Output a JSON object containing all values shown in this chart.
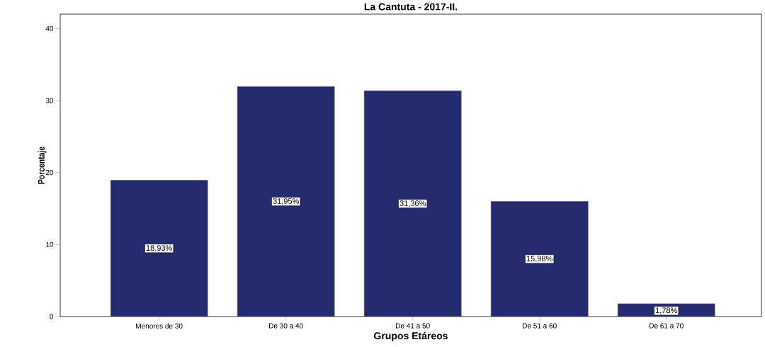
{
  "chart_data": {
    "type": "bar",
    "title": "La Cantuta - 2017-II.",
    "xlabel": "Grupos Etáreos",
    "ylabel": "Porcentaje",
    "categories": [
      "Menores de 30",
      "De 30 a 40",
      "De 41 a 50",
      "De 51 a 60",
      "De 61 a 70"
    ],
    "values": [
      18.93,
      31.95,
      31.36,
      15.98,
      1.78
    ],
    "value_labels": [
      "18,93%",
      "31,95%",
      "31,36%",
      "15,98%",
      "1,78%"
    ],
    "color": "#262a6e",
    "ylim": [
      0,
      42
    ],
    "yticks": [
      0,
      10,
      20,
      30,
      40
    ]
  }
}
